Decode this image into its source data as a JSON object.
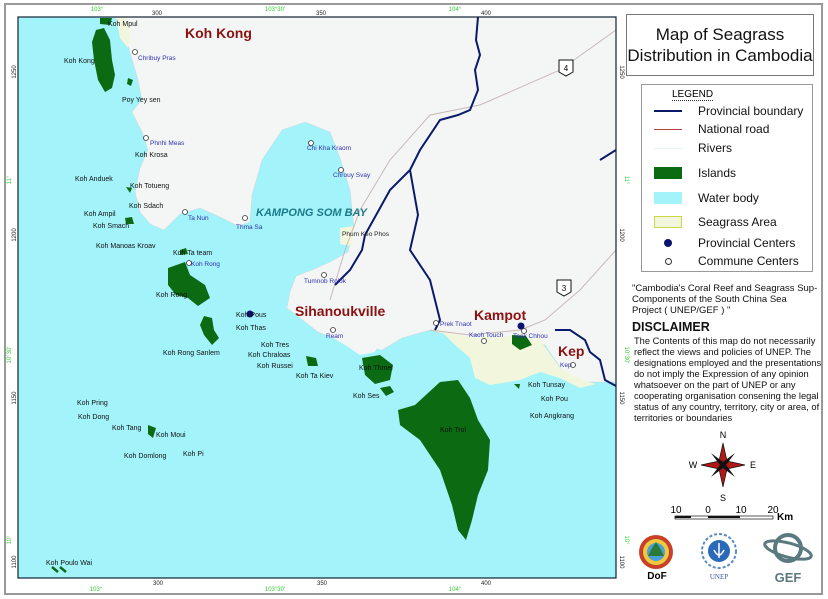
{
  "title": "Map of Seagrass Distribution in Cambodia",
  "legend": {
    "title": "LEGEND",
    "items": [
      {
        "label": "Provincial boundary",
        "color": "#0a1a6a",
        "type": "line"
      },
      {
        "label": "National road",
        "color": "#b04040",
        "type": "line"
      },
      {
        "label": "Rivers",
        "color": "#e8f2f4",
        "type": "line"
      },
      {
        "label": "Islands",
        "color": "#0b6b12",
        "type": "fill"
      },
      {
        "label": "Water body",
        "color": "#a3f3fa",
        "type": "fill"
      },
      {
        "label": "Seagrass Area",
        "color": "#f2f6dc",
        "type": "fill"
      },
      {
        "label": "Provincial Centers",
        "color": "#0a1370",
        "type": "dot"
      },
      {
        "label": "Commune Centers",
        "color": "#ffffff",
        "type": "circle"
      }
    ]
  },
  "project_text": "\"Cambodia's Coral Reef and Seagrass Sup-Components of the South China Sea Project ( UNEP/GEF ) \"",
  "disclaimer": {
    "heading": "DISCLAIMER",
    "text": "The Contents of this map do not necessarily reflect the views and policies of UNEP. The designations employed and the presentations do not imply the Expression of any opinion whatsoever on the part of UNEP or any cooperating organisation consening the legal status of any country, territory, city or area, of territories or boundaries"
  },
  "compass": {
    "n": "N",
    "s": "S",
    "e": "E",
    "w": "W"
  },
  "scale_bar": {
    "ticks": [
      "10",
      "0",
      "10",
      "20"
    ],
    "unit": "Km"
  },
  "logos": [
    "DoF",
    "UNEP",
    "GEF"
  ],
  "grid": {
    "top": [
      "103°",
      "300",
      "103°30'",
      "350",
      "104°",
      "400"
    ],
    "bottom": [
      "300",
      "350",
      "400",
      "103°",
      "103°30'",
      "104°"
    ],
    "left": [
      "1250",
      "11°",
      "1200",
      "10°30'",
      "1150",
      "10°",
      "1100"
    ],
    "right": [
      "1250",
      "11°",
      "1200",
      "10°30'",
      "1150",
      "10°",
      "1100"
    ]
  },
  "provinces": [
    "Koh Kong",
    "Sihanoukville",
    "Kampot",
    "Kep"
  ],
  "bay": "KAMPONG SOM BAY",
  "road_shields": [
    "4",
    "3"
  ],
  "communes": [
    "Chribuy Pras",
    "Phnhi Meas",
    "Ta Nun",
    "Thma Sa",
    "Koh Rong",
    "Chi Kha Kraom",
    "Chrouy Svay",
    "Tumnob Rolok",
    "Ream",
    "Prek Tnaot",
    "Kaoh Touch",
    "Toek Chhou",
    "Kep"
  ],
  "places": [
    "Phum Keo Phos"
  ],
  "islands": [
    "Koh Mpul",
    "Koh Kong",
    "Poy Yey sen",
    "Koh Krosa",
    "Koh Anduek",
    "Koh Totueng",
    "Koh Sdach",
    "Koh Ampil",
    "Koh Smach",
    "Koh Manoas Kroav",
    "Koh Ta team",
    "Koh Rong",
    "Koh Rong Sanlem",
    "Koh Pous",
    "Koh Thas",
    "Koh Tres",
    "Koh Chraloas",
    "Koh Russei",
    "Koh Ta Kiev",
    "Koh Thmei",
    "Koh Ses",
    "Koh Trol",
    "Koh Pring",
    "Koh Dong",
    "Koh Tang",
    "Koh Moui",
    "Koh Domlong",
    "Koh Pi",
    "Koh Poulo Wai",
    "Koh Tunsay",
    "Koh Pou",
    "Koh Angkrang"
  ]
}
